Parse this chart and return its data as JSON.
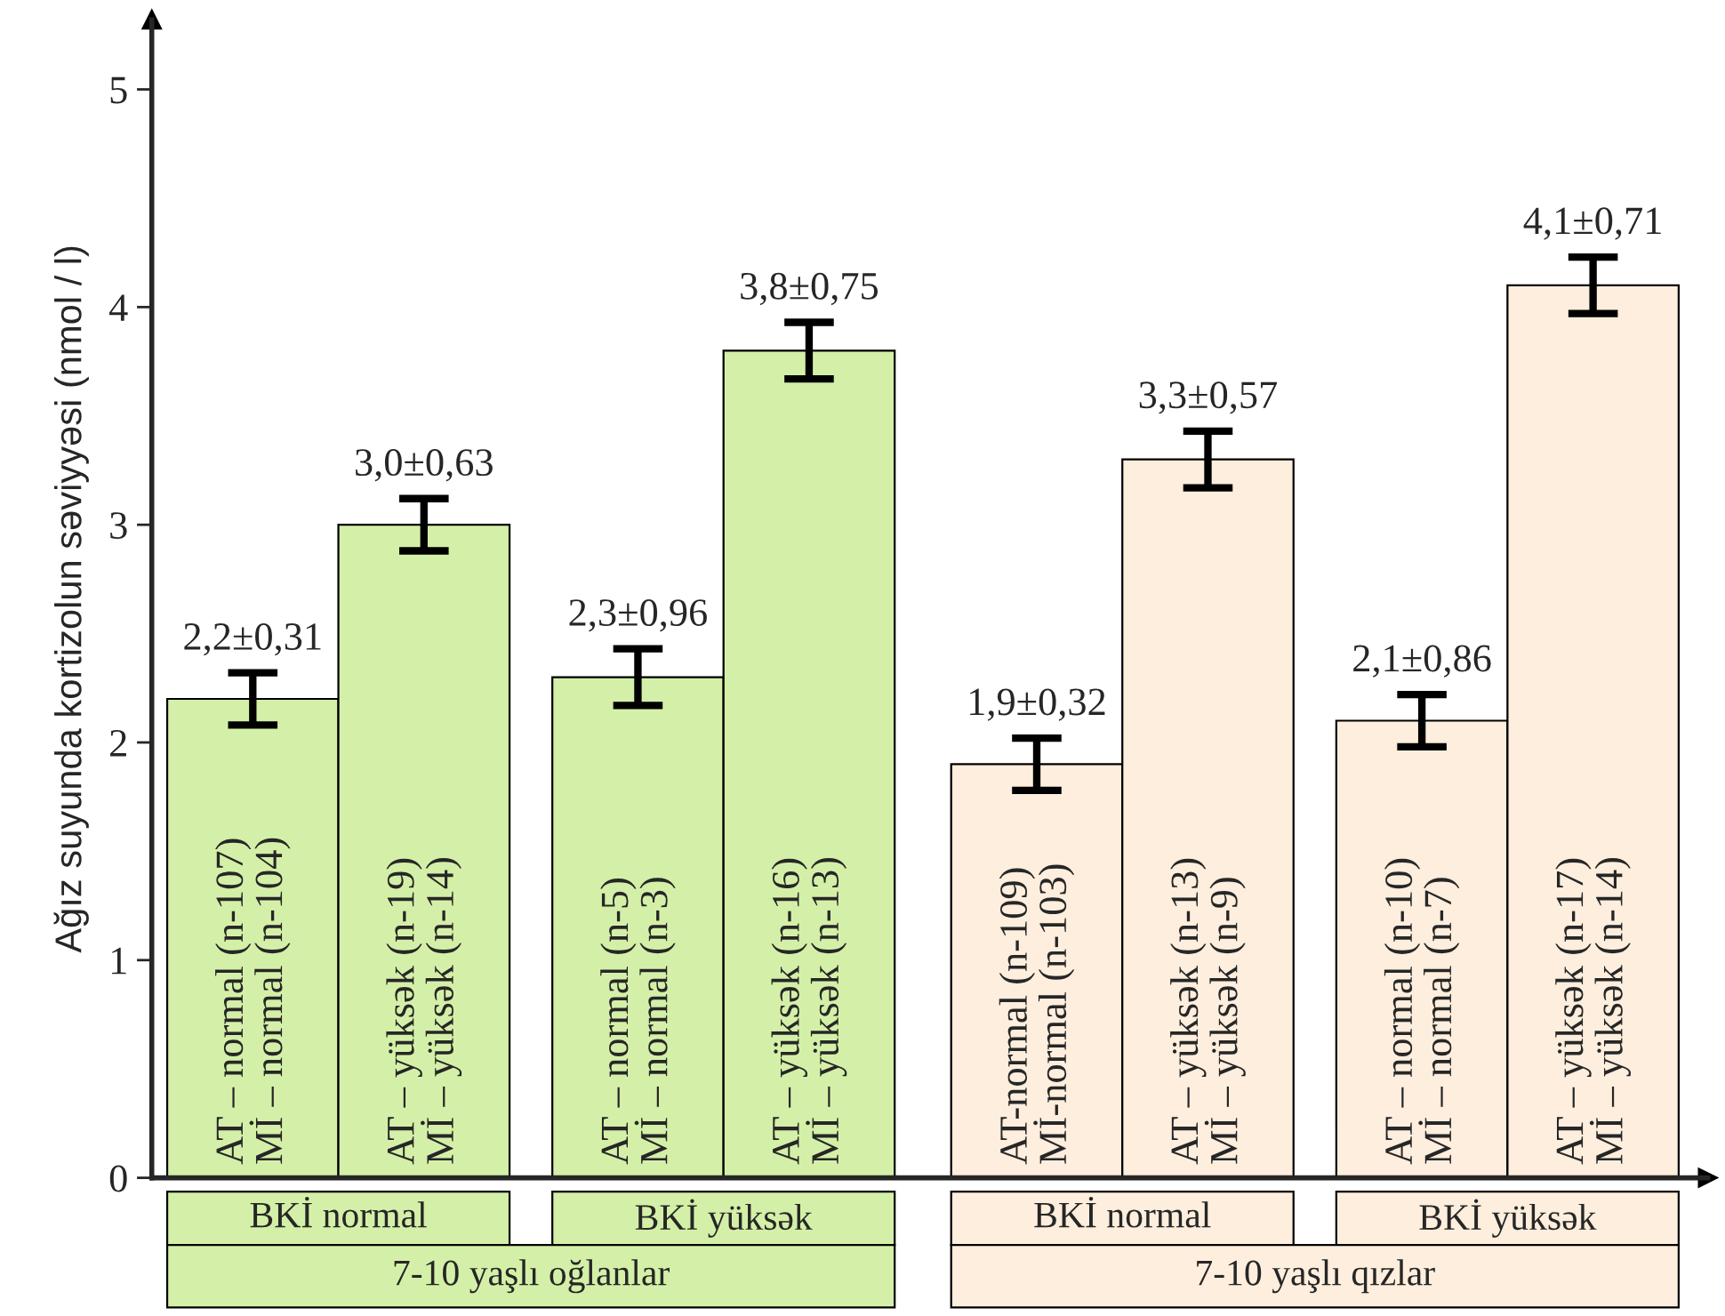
{
  "chart_data": {
    "type": "bar",
    "ylabel": "Ağız suyunda kortizolun səviyyəsi (nmol / l)",
    "categories": [
      null,
      null,
      null,
      null,
      null,
      null,
      null,
      null
    ],
    "values": [
      2.2,
      3.0,
      2.3,
      3.8,
      1.9,
      3.3,
      2.1,
      4.1
    ],
    "errors": [
      0.12,
      0.12,
      0.13,
      0.13,
      0.12,
      0.13,
      0.12,
      0.13
    ],
    "value_labels": [
      "2,2±0,31",
      "3,0±0,63",
      "2,3±0,96",
      "3,8±0,75",
      "1,9±0,32",
      "3,3±0,57",
      "2,1±0,86",
      "4,1±0,71"
    ],
    "colors": [
      "#d4f0a8",
      "#d4f0a8",
      "#d4f0a8",
      "#d4f0a8",
      "#fdeedd",
      "#fdeedd",
      "#fdeedd",
      "#fdeedd"
    ],
    "ylim": [
      0,
      5.32
    ],
    "yticks": [
      0,
      1,
      2,
      3,
      4,
      5
    ],
    "annotations": [
      "AT – normal (n-107)\nMİ – normal (n-104)",
      "AT – yüksək (n-19)\nMİ – yüksək (n-14)",
      "AT – normal (n-5)\nMİ – normal (n-3)",
      "AT – yüksək (n-16)\nMİ – yüksək (n-13)",
      "AT-normal (n-109)\nMİ-normal (n-103)",
      "AT – yüksək (n-13)\nMİ – yüksək (n-9)",
      "AT – normal (n-10)\nMİ – normal (n-7)",
      "AT – yüksək (n-17)\nMİ – yüksək (n-14)",
      "BKİ normal",
      "BKİ yüksək",
      "BKİ normal",
      "BKİ yüksək",
      "7-10 yaşlı oğlanlar",
      "7-10 yaşlı qızlar"
    ],
    "grid": false,
    "legend": false
  }
}
